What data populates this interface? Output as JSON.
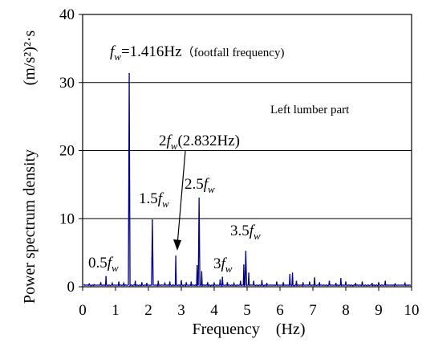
{
  "chart_data": {
    "type": "line",
    "title": "",
    "xlabel": "Frequency　(Hz)",
    "ylabel": "Power spectrum density",
    "ylabel_unit": "(m/s²)²·s",
    "xlim": [
      0,
      10
    ],
    "ylim": [
      0,
      40
    ],
    "x_ticks": [
      "0",
      "1",
      "2",
      "3",
      "4",
      "5",
      "6",
      "7",
      "8",
      "9",
      "10"
    ],
    "y_ticks": [
      "0",
      "10",
      "20",
      "30",
      "40"
    ],
    "grid": "horizontal",
    "legend": "none",
    "series_color": "#00008b",
    "peaks": [
      {
        "x": 0.05,
        "y": 0.3
      },
      {
        "x": 0.2,
        "y": 0.4
      },
      {
        "x": 0.35,
        "y": 0.3
      },
      {
        "x": 0.55,
        "y": 0.6
      },
      {
        "x": 0.71,
        "y": 1.5
      },
      {
        "x": 0.9,
        "y": 0.5
      },
      {
        "x": 1.1,
        "y": 0.7
      },
      {
        "x": 1.25,
        "y": 0.5
      },
      {
        "x": 1.416,
        "y": 31.3
      },
      {
        "x": 1.6,
        "y": 0.8
      },
      {
        "x": 1.8,
        "y": 0.6
      },
      {
        "x": 1.95,
        "y": 0.5
      },
      {
        "x": 2.12,
        "y": 9.8
      },
      {
        "x": 2.3,
        "y": 0.8
      },
      {
        "x": 2.5,
        "y": 0.5
      },
      {
        "x": 2.65,
        "y": 0.7
      },
      {
        "x": 2.832,
        "y": 4.5
      },
      {
        "x": 3.0,
        "y": 0.9
      },
      {
        "x": 3.15,
        "y": 0.6
      },
      {
        "x": 3.3,
        "y": 0.7
      },
      {
        "x": 3.48,
        "y": 3.1
      },
      {
        "x": 3.54,
        "y": 13.0
      },
      {
        "x": 3.62,
        "y": 2.2
      },
      {
        "x": 3.8,
        "y": 0.6
      },
      {
        "x": 4.0,
        "y": 0.5
      },
      {
        "x": 4.18,
        "y": 1.0
      },
      {
        "x": 4.25,
        "y": 1.4
      },
      {
        "x": 4.4,
        "y": 0.6
      },
      {
        "x": 4.6,
        "y": 0.5
      },
      {
        "x": 4.8,
        "y": 0.8
      },
      {
        "x": 4.9,
        "y": 3.2
      },
      {
        "x": 4.96,
        "y": 5.2
      },
      {
        "x": 5.05,
        "y": 2.0
      },
      {
        "x": 5.2,
        "y": 0.8
      },
      {
        "x": 5.45,
        "y": 0.9
      },
      {
        "x": 5.6,
        "y": 0.5
      },
      {
        "x": 5.9,
        "y": 0.7
      },
      {
        "x": 6.1,
        "y": 0.6
      },
      {
        "x": 6.3,
        "y": 1.8
      },
      {
        "x": 6.38,
        "y": 2.0
      },
      {
        "x": 6.5,
        "y": 0.8
      },
      {
        "x": 6.7,
        "y": 0.6
      },
      {
        "x": 6.9,
        "y": 0.7
      },
      {
        "x": 7.05,
        "y": 1.3
      },
      {
        "x": 7.2,
        "y": 0.6
      },
      {
        "x": 7.5,
        "y": 0.8
      },
      {
        "x": 7.7,
        "y": 0.5
      },
      {
        "x": 7.85,
        "y": 1.2
      },
      {
        "x": 8.0,
        "y": 0.7
      },
      {
        "x": 8.3,
        "y": 0.5
      },
      {
        "x": 8.5,
        "y": 0.7
      },
      {
        "x": 8.8,
        "y": 0.5
      },
      {
        "x": 9.0,
        "y": 0.6
      },
      {
        "x": 9.2,
        "y": 0.8
      },
      {
        "x": 9.5,
        "y": 0.4
      },
      {
        "x": 9.8,
        "y": 0.5
      }
    ],
    "annotations": {
      "fw": {
        "pre": "",
        "var": "f",
        "sub": "w",
        "post": "=1.416Hz",
        "note": "（footfall frequency)"
      },
      "region": "Left lumber part",
      "h2": {
        "pre": "2",
        "var": "f",
        "sub": "w",
        "post": "(2.832Hz)"
      },
      "h15": {
        "pre": "1.5",
        "var": "f",
        "sub": "w",
        "post": ""
      },
      "h25": {
        "pre": "2.5",
        "var": "f",
        "sub": "w",
        "post": ""
      },
      "h35": {
        "pre": "3.5",
        "var": "f",
        "sub": "w",
        "post": ""
      },
      "h05": {
        "pre": "0.5",
        "var": "f",
        "sub": "w",
        "post": ""
      },
      "h3": {
        "pre": "3",
        "var": "f",
        "sub": "w",
        "post": ""
      }
    }
  }
}
